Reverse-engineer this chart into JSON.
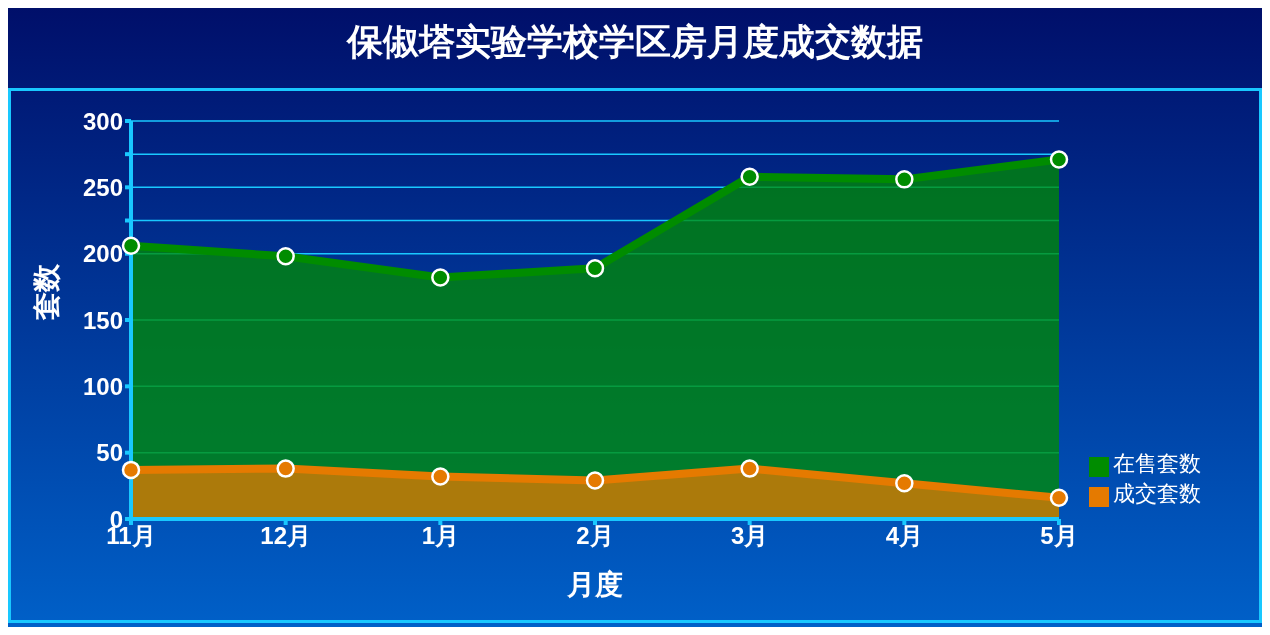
{
  "chart_data": {
    "type": "area",
    "title": "保俶塔实验学校学区房月度成交数据",
    "xlabel": "月度",
    "ylabel": "套数",
    "categories": [
      "11月",
      "12月",
      "1月",
      "2月",
      "3月",
      "4月",
      "5月"
    ],
    "series": [
      {
        "name": "成交套数",
        "color": "#e57a00",
        "values": [
          37,
          38,
          32,
          29,
          38,
          27,
          16
        ]
      },
      {
        "name": "在售套数",
        "color": "#008c00",
        "values": [
          206,
          198,
          182,
          189,
          258,
          256,
          271
        ]
      }
    ],
    "ylim": [
      0,
      300
    ],
    "yticks": [
      0,
      50,
      100,
      150,
      200,
      {
        "value": 225,
        "label": null
      },
      250,
      {
        "value": 275,
        "label": null
      },
      300
    ],
    "grid": "y",
    "legend": "right",
    "marker": "circle"
  }
}
